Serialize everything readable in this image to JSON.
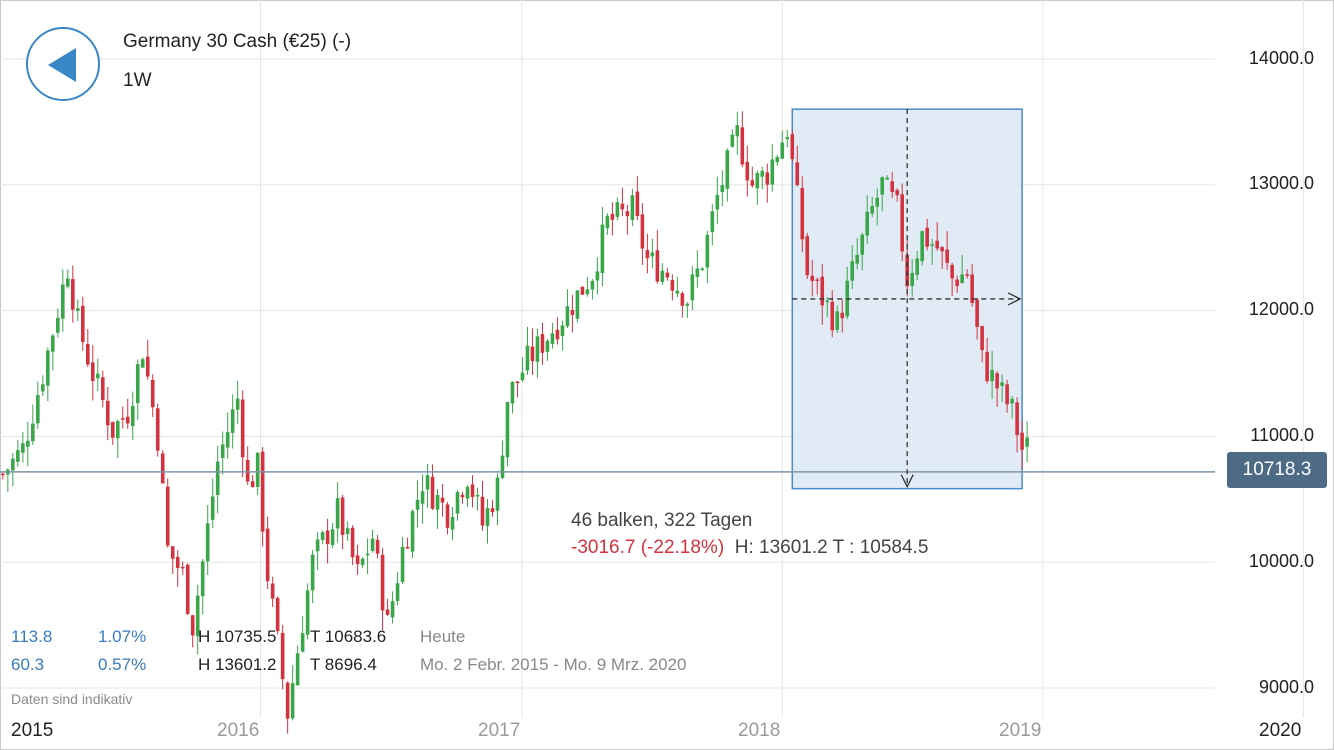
{
  "header": {
    "instrument": "Germany 30 Cash (€25) (-)",
    "interval": "1W"
  },
  "price_badge": "10718.3",
  "measurement": {
    "bars_days": "46 balken, 322 Tagen",
    "change": "-3016.7 (-22.18%)",
    "high_low": "H: 13601.2 T : 10584.5"
  },
  "stats": {
    "row1": {
      "points": "113.8",
      "pct": "1.07%",
      "high": "H 10735.5",
      "low": "T 10683.6",
      "period": "Heute"
    },
    "row2": {
      "points": "60.3",
      "pct": "0.57%",
      "high": "H 13601.2",
      "low": "T 8696.4",
      "period": "Mo. 2 Febr. 2015 - Mo. 9 Mrz. 2020"
    }
  },
  "disclaimer": "Daten sind indikativ",
  "colors": {
    "up": "#3aa64a",
    "down": "#d3333f",
    "accent": "#3a87c8",
    "badge": "#4d6b85"
  },
  "chart_data": {
    "type": "candlestick",
    "x_axis": {
      "ticks": [
        "2015",
        "2016",
        "2017",
        "2018",
        "2019",
        "2020"
      ]
    },
    "y_axis": {
      "ticks": [
        "9000.0",
        "10000.0",
        "11000.0",
        "12000.0",
        "13000.0",
        "14000.0"
      ],
      "range": [
        8700,
        14300
      ]
    },
    "grid": true,
    "current_price": 10718.3,
    "selection": {
      "from": "2018-01-15",
      "to": "2018-12-03",
      "high": 13601.2,
      "low": 10584.5,
      "bars": 46
    },
    "series_close": [
      {
        "date": "2015-01-05",
        "value": 10700
      },
      {
        "date": "2015-02-02",
        "value": 10900
      },
      {
        "date": "2015-03-02",
        "value": 11500
      },
      {
        "date": "2015-04-06",
        "value": 12350
      },
      {
        "date": "2015-04-20",
        "value": 11900
      },
      {
        "date": "2015-05-11",
        "value": 11500
      },
      {
        "date": "2015-06-08",
        "value": 11050
      },
      {
        "date": "2015-06-29",
        "value": 11200
      },
      {
        "date": "2015-07-20",
        "value": 11700
      },
      {
        "date": "2015-08-10",
        "value": 11000
      },
      {
        "date": "2015-08-24",
        "value": 10100
      },
      {
        "date": "2015-09-14",
        "value": 9900
      },
      {
        "date": "2015-09-28",
        "value": 9500
      },
      {
        "date": "2015-10-12",
        "value": 10000
      },
      {
        "date": "2015-11-02",
        "value": 10800
      },
      {
        "date": "2015-11-30",
        "value": 11300
      },
      {
        "date": "2015-12-14",
        "value": 10600
      },
      {
        "date": "2015-12-28",
        "value": 10750
      },
      {
        "date": "2016-01-11",
        "value": 9900
      },
      {
        "date": "2016-02-08",
        "value": 8800
      },
      {
        "date": "2016-02-22",
        "value": 9300
      },
      {
        "date": "2016-03-14",
        "value": 10000
      },
      {
        "date": "2016-04-18",
        "value": 10400
      },
      {
        "date": "2016-05-16",
        "value": 9900
      },
      {
        "date": "2016-06-06",
        "value": 10200
      },
      {
        "date": "2016-06-27",
        "value": 9500
      },
      {
        "date": "2016-07-18",
        "value": 10100
      },
      {
        "date": "2016-08-15",
        "value": 10650
      },
      {
        "date": "2016-09-19",
        "value": 10400
      },
      {
        "date": "2016-10-17",
        "value": 10700
      },
      {
        "date": "2016-11-07",
        "value": 10300
      },
      {
        "date": "2016-11-28",
        "value": 10600
      },
      {
        "date": "2016-12-12",
        "value": 11300
      },
      {
        "date": "2017-01-09",
        "value": 11600
      },
      {
        "date": "2017-02-06",
        "value": 11800
      },
      {
        "date": "2017-03-06",
        "value": 12000
      },
      {
        "date": "2017-04-10",
        "value": 12300
      },
      {
        "date": "2017-05-01",
        "value": 12700
      },
      {
        "date": "2017-06-05",
        "value": 12800
      },
      {
        "date": "2017-06-26",
        "value": 12400
      },
      {
        "date": "2017-07-24",
        "value": 12300
      },
      {
        "date": "2017-08-21",
        "value": 12100
      },
      {
        "date": "2017-09-11",
        "value": 12400
      },
      {
        "date": "2017-10-02",
        "value": 12900
      },
      {
        "date": "2017-10-30",
        "value": 13400
      },
      {
        "date": "2017-11-20",
        "value": 13000
      },
      {
        "date": "2017-12-11",
        "value": 13100
      },
      {
        "date": "2018-01-08",
        "value": 13450
      },
      {
        "date": "2018-02-05",
        "value": 12300
      },
      {
        "date": "2018-02-26",
        "value": 12100
      },
      {
        "date": "2018-03-19",
        "value": 11900
      },
      {
        "date": "2018-04-09",
        "value": 12300
      },
      {
        "date": "2018-05-07",
        "value": 12800
      },
      {
        "date": "2018-05-21",
        "value": 13000
      },
      {
        "date": "2018-06-11",
        "value": 12800
      },
      {
        "date": "2018-06-25",
        "value": 12250
      },
      {
        "date": "2018-07-16",
        "value": 12600
      },
      {
        "date": "2018-08-06",
        "value": 12500
      },
      {
        "date": "2018-08-27",
        "value": 12250
      },
      {
        "date": "2018-09-17",
        "value": 12300
      },
      {
        "date": "2018-10-08",
        "value": 11600
      },
      {
        "date": "2018-10-29",
        "value": 11400
      },
      {
        "date": "2018-11-19",
        "value": 11200
      },
      {
        "date": "2018-12-03",
        "value": 10900
      }
    ]
  }
}
